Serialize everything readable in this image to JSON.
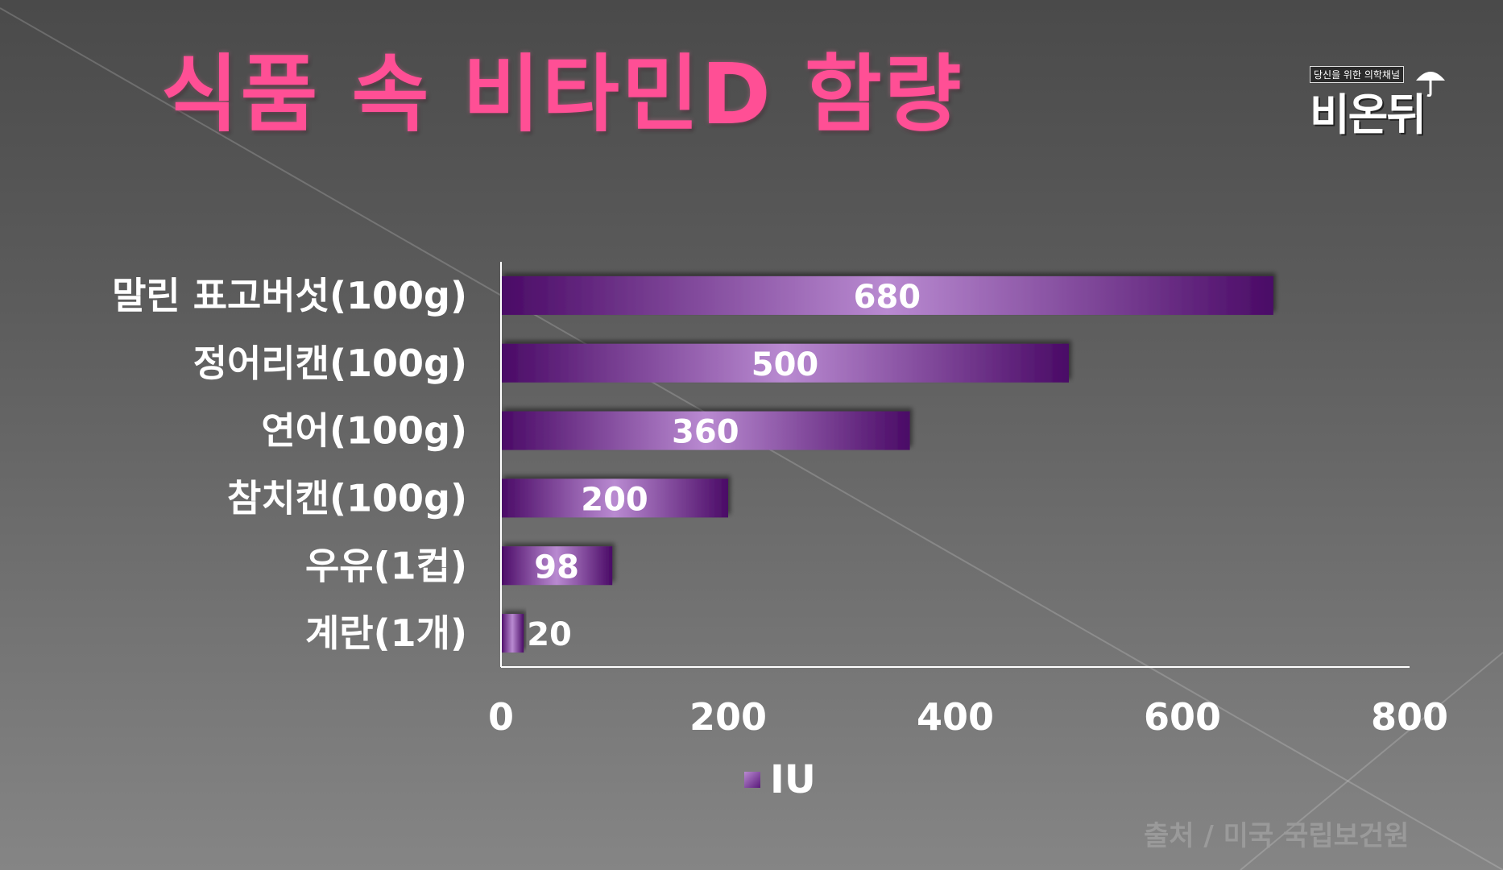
{
  "title": "식품 속 비타민D 함량",
  "logo": {
    "tagline": "당신을 위한 의학채널",
    "name": "비온뒤"
  },
  "source": "출처 / 미국 국립보건원",
  "colors": {
    "title": "#ff4f95",
    "bar_dark": "#4a0a66",
    "bar_light": "#b98ad1"
  },
  "chart_data": {
    "type": "bar",
    "orientation": "horizontal",
    "categories": [
      "말린 표고버섯(100g)",
      "정어리캔(100g)",
      "연어(100g)",
      "참치캔(100g)",
      "우유(1컵)",
      "계란(1개)"
    ],
    "series": [
      {
        "name": "IU",
        "values": [
          680,
          500,
          360,
          200,
          98,
          20
        ]
      }
    ],
    "data_labels": [
      "680",
      "500",
      "360",
      "200",
      "98",
      "20"
    ],
    "xlim": [
      0,
      800
    ],
    "x_ticks": [
      0,
      200,
      400,
      600,
      800
    ],
    "x_tick_labels": [
      "0",
      "200",
      "400",
      "600",
      "800"
    ],
    "grid": false,
    "legend_position": "bottom"
  }
}
